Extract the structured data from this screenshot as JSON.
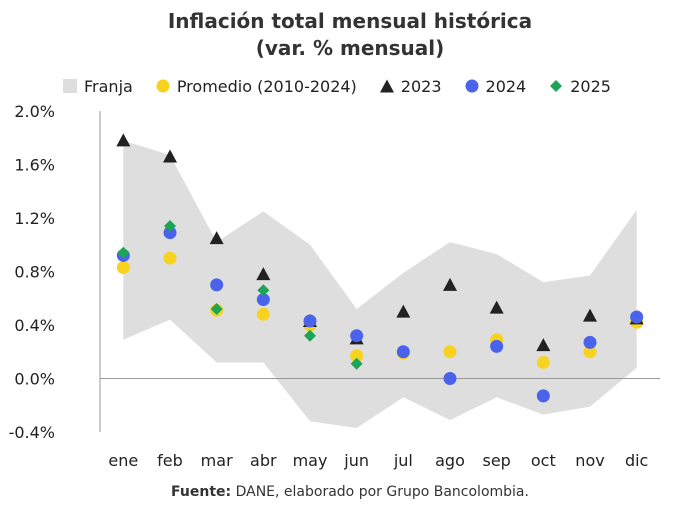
{
  "chart_data": {
    "type": "scatter",
    "title": "Inflación total mensual histórica",
    "subtitle": "(var. % mensual)",
    "categories": [
      "ene",
      "feb",
      "mar",
      "abr",
      "may",
      "jun",
      "jul",
      "ago",
      "sep",
      "oct",
      "nov",
      "dic"
    ],
    "ylim": [
      -0.4,
      2.0
    ],
    "yticks": [
      2.0,
      1.6,
      1.2,
      0.8,
      0.4,
      0.0,
      -0.4
    ],
    "ytick_labels": [
      "2.0%",
      "1.6%",
      "1.2%",
      "0.8%",
      "0.4%",
      "0.0%",
      "-0.4%"
    ],
    "band": {
      "name": "Franja",
      "upper": [
        1.78,
        1.67,
        1.02,
        1.25,
        1.0,
        0.52,
        0.79,
        1.02,
        0.93,
        0.72,
        0.77,
        1.26
      ],
      "lower": [
        0.29,
        0.44,
        0.12,
        0.12,
        -0.32,
        -0.37,
        -0.14,
        -0.31,
        -0.14,
        -0.27,
        -0.21,
        0.08
      ]
    },
    "series": [
      {
        "name": "Promedio (2010-2024)",
        "marker": "circle",
        "color": "#F7D21E",
        "values": [
          0.83,
          0.9,
          0.51,
          0.48,
          0.4,
          0.17,
          0.19,
          0.2,
          0.29,
          0.12,
          0.2,
          0.42
        ]
      },
      {
        "name": "2023",
        "marker": "triangle",
        "color": "#222222",
        "values": [
          1.78,
          1.66,
          1.05,
          0.78,
          0.43,
          0.3,
          0.5,
          0.7,
          0.53,
          0.25,
          0.47,
          0.45
        ]
      },
      {
        "name": "2024",
        "marker": "circle",
        "color": "#4A63EA",
        "values": [
          0.92,
          1.09,
          0.7,
          0.59,
          0.43,
          0.32,
          0.2,
          0.0,
          0.24,
          -0.13,
          0.27,
          0.46
        ]
      },
      {
        "name": "2025",
        "marker": "diamond",
        "color": "#1DA455",
        "values": [
          0.94,
          1.14,
          0.52,
          0.66,
          0.32,
          0.11,
          null,
          null,
          null,
          null,
          null,
          null
        ]
      }
    ],
    "legend_position": "top"
  },
  "source": {
    "label": "Fuente:",
    "text": " DANE, elaborado por Grupo Bancolombia."
  },
  "colors": {
    "band": "#DEDEDE",
    "axis": "#999999"
  }
}
